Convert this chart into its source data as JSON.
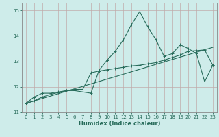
{
  "xlabel": "Humidex (Indice chaleur)",
  "xlim": [
    -0.5,
    23.5
  ],
  "ylim": [
    11,
    15.3
  ],
  "yticks": [
    11,
    12,
    13,
    14,
    15
  ],
  "xticks": [
    0,
    1,
    2,
    3,
    4,
    5,
    6,
    7,
    8,
    9,
    10,
    11,
    12,
    13,
    14,
    15,
    16,
    17,
    18,
    19,
    20,
    21,
    22,
    23
  ],
  "bg_color": "#ceecea",
  "grid_color": "#c0aaaa",
  "line_color": "#276b5a",
  "line1_x": [
    0,
    1,
    2,
    3,
    4,
    5,
    6,
    7,
    8,
    9,
    10,
    11,
    12,
    13,
    14,
    15,
    16,
    17,
    18,
    19,
    20,
    21,
    22,
    23
  ],
  "line1_y": [
    11.35,
    11.6,
    11.75,
    11.75,
    11.8,
    11.85,
    11.85,
    11.8,
    11.75,
    12.65,
    13.05,
    13.4,
    13.85,
    14.45,
    14.95,
    14.35,
    13.85,
    13.2,
    13.3,
    13.65,
    13.5,
    13.3,
    12.2,
    12.85
  ],
  "line2_x": [
    0,
    1,
    2,
    3,
    4,
    5,
    6,
    7,
    8,
    9,
    10,
    11,
    12,
    13,
    14,
    15,
    16,
    17,
    18,
    19,
    20,
    21,
    22,
    23
  ],
  "line2_y": [
    11.35,
    11.45,
    11.6,
    11.7,
    11.78,
    11.85,
    11.9,
    11.9,
    12.55,
    12.62,
    12.67,
    12.72,
    12.77,
    12.82,
    12.85,
    12.9,
    12.95,
    13.05,
    13.15,
    13.25,
    13.4,
    13.42,
    13.45,
    12.85
  ],
  "line3_x": [
    0,
    23
  ],
  "line3_y": [
    11.35,
    13.55
  ]
}
